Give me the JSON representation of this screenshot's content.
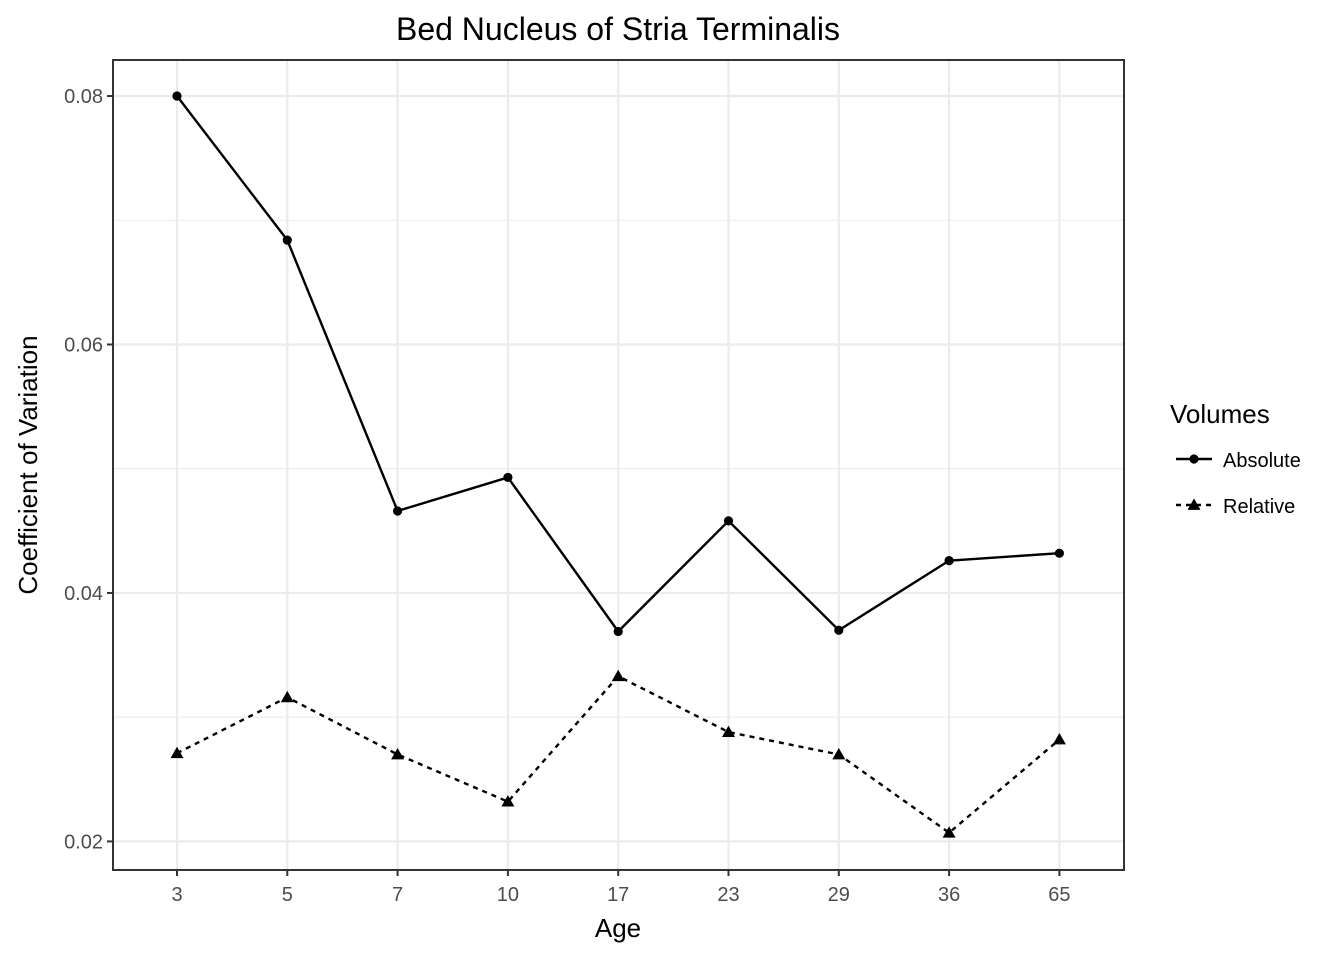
{
  "chart_data": {
    "type": "line",
    "title": "Bed Nucleus of Stria Terminalis",
    "xlabel": "Age",
    "ylabel": "Coefficient of Variation",
    "categories": [
      "3",
      "5",
      "7",
      "10",
      "17",
      "23",
      "29",
      "36",
      "65"
    ],
    "yticks": [
      "0.02",
      "0.04",
      "0.06",
      "0.08"
    ],
    "ylim": [
      0.0177,
      0.0829
    ],
    "grid": true,
    "legend": {
      "title": "Volumes",
      "placement": "right"
    },
    "series": [
      {
        "name": "Absolute",
        "linestyle": "solid",
        "marker": "circle",
        "values": [
          0.08,
          0.0684,
          0.0466,
          0.0493,
          0.0369,
          0.0458,
          0.037,
          0.0426,
          0.0432
        ]
      },
      {
        "name": "Relative",
        "linestyle": "dotted",
        "marker": "triangle",
        "values": [
          0.0271,
          0.0316,
          0.027,
          0.0232,
          0.0333,
          0.0288,
          0.027,
          0.0207,
          0.0282
        ]
      }
    ],
    "colors": {
      "line": "#000000",
      "grid": "#ebebeb",
      "border": "#333333",
      "tick_text": "#4d4d4d"
    }
  }
}
